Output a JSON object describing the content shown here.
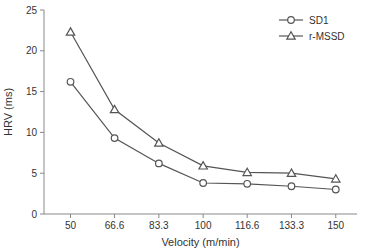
{
  "chart_data": {
    "type": "line",
    "x": [
      50,
      66.6,
      83.3,
      100,
      116.6,
      133.3,
      150
    ],
    "series": [
      {
        "name": "SD1",
        "color": "#555555",
        "marker": "circle",
        "values": [
          16.2,
          9.3,
          6.2,
          3.8,
          3.7,
          3.4,
          3.0
        ]
      },
      {
        "name": "r-MSSD",
        "color": "#555555",
        "marker": "triangle",
        "values": [
          22.3,
          12.8,
          8.7,
          5.9,
          5.1,
          5.0,
          4.3
        ]
      }
    ],
    "xlabel": "Velocity (m/min)",
    "ylabel": "HRV (ms)",
    "xlim": [
      40,
      158
    ],
    "xticks": [
      50,
      66.6,
      83.3,
      100,
      116.6,
      133.3,
      150
    ],
    "ylim": [
      0,
      25
    ],
    "yticks": [
      0,
      5,
      10,
      15,
      20,
      25
    ],
    "legend": "upper right",
    "grid": false
  }
}
